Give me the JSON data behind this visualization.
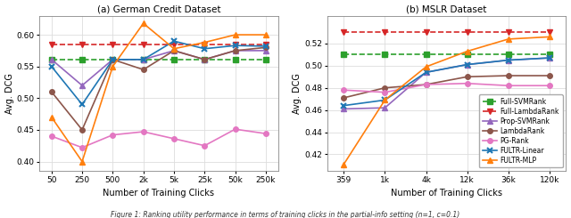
{
  "left": {
    "xtick_labels": [
      "50",
      "250",
      "500",
      "2k",
      "5k",
      "25k",
      "50k",
      "250k"
    ],
    "xlabel": "Number of Training Clicks",
    "ylabel": "Avg. DCG",
    "title": "(a) German Credit Dataset",
    "ylim": [
      0.385,
      0.63
    ],
    "yticks": [
      0.4,
      0.45,
      0.5,
      0.55,
      0.6
    ],
    "series": {
      "Full-SVMRank": {
        "y": [
          0.561,
          0.561,
          0.561,
          0.561,
          0.561,
          0.561,
          0.561,
          0.561
        ],
        "color": "#2ca02c",
        "marker": "s",
        "linestyle": "--",
        "dashed": true
      },
      "Full-LambdaRank": {
        "y": [
          0.584,
          0.584,
          0.584,
          0.584,
          0.584,
          0.584,
          0.584,
          0.584
        ],
        "color": "#d62728",
        "marker": "v",
        "linestyle": "--",
        "dashed": true
      },
      "Prop-SVMRank": {
        "y": [
          0.561,
          0.52,
          0.561,
          0.561,
          0.575,
          0.561,
          0.575,
          0.575
        ],
        "color": "#9467bd",
        "marker": "^",
        "linestyle": "-",
        "dashed": false
      },
      "LambdaRank": {
        "y": [
          0.51,
          0.45,
          0.561,
          0.545,
          0.575,
          0.561,
          0.575,
          0.58
        ],
        "color": "#8c564b",
        "marker": "o",
        "linestyle": "-",
        "dashed": false
      },
      "PG-Rank": {
        "y": [
          0.44,
          0.422,
          0.442,
          0.447,
          0.436,
          0.425,
          0.451,
          0.444
        ],
        "color": "#e377c2",
        "marker": "o",
        "linestyle": "-",
        "dashed": false
      },
      "FULTR-Linear": {
        "y": [
          0.55,
          0.49,
          0.561,
          0.561,
          0.59,
          0.578,
          0.583,
          0.582
        ],
        "color": "#1f77b4",
        "marker": "x",
        "linestyle": "-",
        "dashed": false
      },
      "FULTR-MLP": {
        "y": [
          0.47,
          0.4,
          0.55,
          0.618,
          0.578,
          0.588,
          0.6,
          0.6
        ],
        "color": "#ff7f0e",
        "marker": "^",
        "linestyle": "-",
        "dashed": false
      }
    }
  },
  "right": {
    "xtick_labels": [
      "359",
      "1k",
      "4k",
      "12k",
      "36k",
      "120k"
    ],
    "xlabel": "Number of Training Clicks",
    "ylabel": "Avg. DCG",
    "title": "(b) MSLR Dataset",
    "ylim": [
      0.405,
      0.545
    ],
    "yticks": [
      0.42,
      0.44,
      0.46,
      0.48,
      0.5,
      0.52
    ],
    "series": {
      "Full-SVMRank": {
        "y": [
          0.51,
          0.51,
          0.51,
          0.51,
          0.51,
          0.51
        ],
        "color": "#2ca02c",
        "marker": "s",
        "linestyle": "--",
        "dashed": true
      },
      "Full-LambdaRank": {
        "y": [
          0.53,
          0.53,
          0.53,
          0.53,
          0.53,
          0.53
        ],
        "color": "#d62728",
        "marker": "v",
        "linestyle": "--",
        "dashed": true
      },
      "Prop-SVMRank": {
        "y": [
          0.461,
          0.462,
          0.494,
          0.501,
          0.505,
          0.507
        ],
        "color": "#9467bd",
        "marker": "^",
        "linestyle": "-",
        "dashed": false
      },
      "LambdaRank": {
        "y": [
          0.471,
          0.48,
          0.483,
          0.49,
          0.491,
          0.491
        ],
        "color": "#8c564b",
        "marker": "o",
        "linestyle": "-",
        "dashed": false
      },
      "PG-Rank": {
        "y": [
          0.478,
          0.476,
          0.483,
          0.484,
          0.482,
          0.482
        ],
        "color": "#e377c2",
        "marker": "o",
        "linestyle": "-",
        "dashed": false
      },
      "FULTR-Linear": {
        "y": [
          0.464,
          0.469,
          0.494,
          0.501,
          0.505,
          0.507
        ],
        "color": "#1f77b4",
        "marker": "x",
        "linestyle": "-",
        "dashed": false
      },
      "FULTR-MLP": {
        "y": [
          0.411,
          0.469,
          0.499,
          0.513,
          0.524,
          0.526
        ],
        "color": "#ff7f0e",
        "marker": "^",
        "linestyle": "-",
        "dashed": false
      }
    }
  },
  "legend_order": [
    "Full-SVMRank",
    "Full-LambdaRank",
    "Prop-SVMRank",
    "LambdaRank",
    "PG-Rank",
    "FULTR-Linear",
    "FULTR-MLP"
  ],
  "figure_caption": "Figure 1: Ranking utility performance in terms of training clicks in the partial-info setting (n=1, c=0.1)",
  "background_color": "#ffffff",
  "axes_facecolor": "#ffffff"
}
